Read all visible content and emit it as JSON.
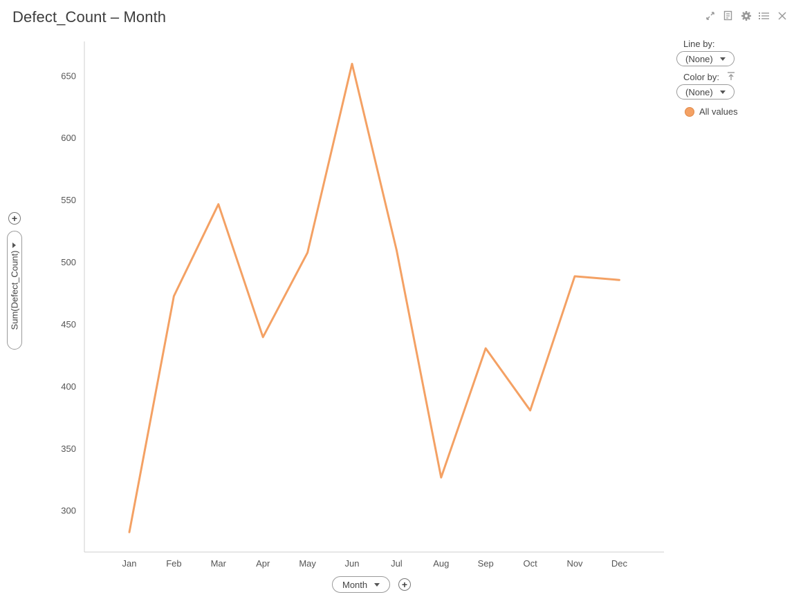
{
  "title": "Defect_Count – Month",
  "toolbar": {
    "icons": [
      "expand-icon",
      "notes-icon",
      "gear-icon",
      "list-icon",
      "close-icon"
    ]
  },
  "legend": {
    "line_by_label": "Line by:",
    "line_by_value": "(None)",
    "color_by_label": "Color by:",
    "color_by_value": "(None)",
    "item_label": "All values",
    "item_color": "#f4a164"
  },
  "y_selector": {
    "label": "Sum(Defect_Count)"
  },
  "x_selector": {
    "label": "Month"
  },
  "chart_data": {
    "type": "line",
    "categories": [
      "Jan",
      "Feb",
      "Mar",
      "Apr",
      "May",
      "Jun",
      "Jul",
      "Aug",
      "Sep",
      "Oct",
      "Nov",
      "Dec"
    ],
    "series": [
      {
        "values": [
          283,
          473,
          547,
          440,
          508,
          660,
          510,
          327,
          431,
          381,
          489,
          486
        ],
        "color": "#f4a164"
      }
    ],
    "xlabel": "Month",
    "ylabel": "Sum(Defect_Count)",
    "ylim": [
      267,
      678
    ],
    "yticks": [
      300,
      350,
      400,
      450,
      500,
      550,
      600,
      650
    ],
    "grid": false,
    "legend_position": "top-right"
  }
}
